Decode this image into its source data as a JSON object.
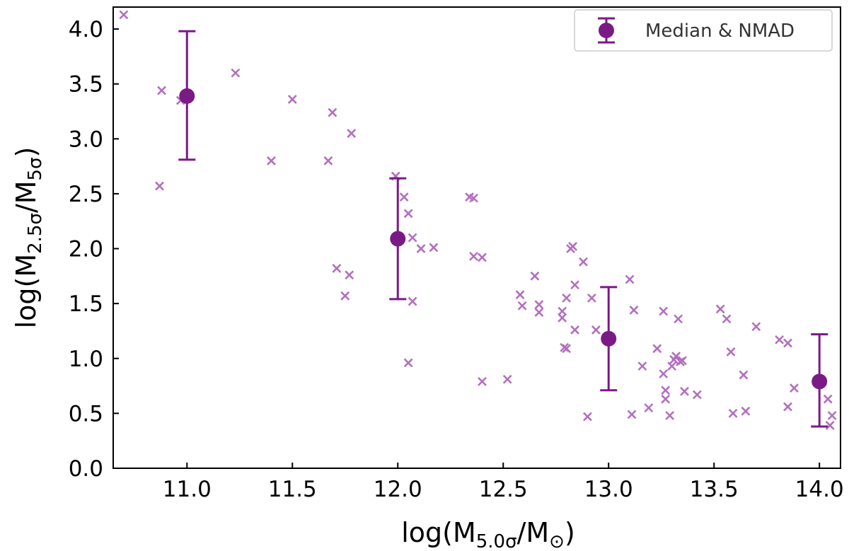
{
  "chart_data": {
    "type": "scatter",
    "xlabel": "log(M5.0σ/M⊙)",
    "xlabel_parts": {
      "pre": "log(M",
      "sub1": "5.0σ",
      "mid": "/M",
      "sub2": "⊙",
      "post": ")"
    },
    "ylabel": "log(M2.5σ/M5σ)",
    "ylabel_parts": {
      "pre": "log(M",
      "sub1": "2.5σ",
      "mid": "/M",
      "sub2": "5σ",
      "post": ")"
    },
    "xlim": [
      10.65,
      14.1
    ],
    "ylim": [
      0.0,
      4.2
    ],
    "xticks": [
      "11.0",
      "11.5",
      "12.0",
      "12.5",
      "13.0",
      "13.5",
      "14.0"
    ],
    "yticks": [
      "0.0",
      "0.5",
      "1.0",
      "1.5",
      "2.0",
      "2.5",
      "3.0",
      "3.5",
      "4.0"
    ],
    "legend": {
      "label": "Median & NMAD",
      "position": "top-right"
    },
    "colors": {
      "points": "#b36fbf",
      "median": "#7a1a85",
      "frame": "#000000"
    },
    "scatter": {
      "name": "individual",
      "marker": "x",
      "x": [
        10.7,
        10.87,
        10.88,
        10.97,
        11.23,
        11.4,
        11.5,
        11.67,
        11.69,
        11.71,
        11.75,
        11.77,
        11.78,
        11.99,
        12.03,
        12.05,
        12.05,
        12.07,
        12.07,
        12.11,
        12.17,
        12.34,
        12.36,
        12.36,
        12.4,
        12.4,
        12.52,
        12.58,
        12.59,
        12.65,
        12.67,
        12.67,
        12.78,
        12.78,
        12.79,
        12.8,
        12.8,
        12.82,
        12.83,
        12.84,
        12.84,
        12.88,
        12.9,
        12.92,
        12.94,
        13.1,
        13.11,
        13.12,
        13.16,
        13.19,
        13.23,
        13.26,
        13.26,
        13.27,
        13.27,
        13.29,
        13.3,
        13.31,
        13.32,
        13.33,
        13.34,
        13.35,
        13.36,
        13.42,
        13.53,
        13.56,
        13.58,
        13.59,
        13.64,
        13.65,
        13.7,
        13.81,
        13.85,
        13.85,
        13.88,
        14.04,
        14.05,
        14.06
      ],
      "y": [
        4.13,
        2.57,
        3.44,
        3.35,
        3.6,
        2.8,
        3.36,
        2.8,
        3.24,
        1.82,
        1.57,
        1.76,
        3.05,
        2.66,
        2.47,
        2.32,
        0.96,
        1.52,
        2.1,
        2.0,
        2.01,
        2.47,
        2.46,
        1.93,
        1.92,
        0.79,
        0.81,
        1.58,
        1.48,
        1.75,
        1.49,
        1.42,
        1.43,
        1.37,
        1.1,
        1.09,
        1.55,
        2.0,
        2.02,
        1.26,
        1.67,
        1.88,
        0.47,
        1.55,
        1.26,
        1.72,
        0.49,
        1.44,
        0.93,
        0.55,
        1.09,
        0.86,
        1.43,
        0.71,
        0.63,
        0.48,
        0.93,
        0.99,
        1.02,
        1.36,
        0.97,
        0.98,
        0.7,
        0.67,
        1.45,
        1.36,
        1.06,
        0.5,
        0.85,
        0.52,
        1.29,
        1.17,
        1.14,
        0.56,
        0.73,
        0.63,
        0.39,
        0.48
      ]
    },
    "medians": {
      "name": "Median & NMAD",
      "x": [
        11.0,
        12.0,
        13.0,
        14.0
      ],
      "y": [
        3.39,
        2.09,
        1.18,
        0.79
      ],
      "err_low": [
        2.81,
        1.54,
        0.71,
        0.38
      ],
      "err_high": [
        3.98,
        2.64,
        1.65,
        1.22
      ]
    }
  }
}
